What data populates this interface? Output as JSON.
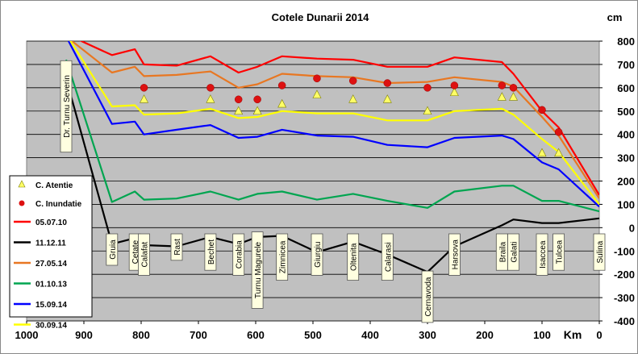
{
  "chart_data": {
    "type": "line",
    "title": "Cotele Dunarii 2014",
    "xlabel": "Km",
    "ylabel": "cm",
    "xlim": [
      1000,
      0
    ],
    "ylim": [
      -400,
      800
    ],
    "x_ticks": [
      1000,
      900,
      800,
      700,
      600,
      500,
      400,
      300,
      200,
      100,
      0
    ],
    "y_ticks": [
      -400,
      -300,
      -200,
      -100,
      0,
      100,
      200,
      300,
      400,
      500,
      600,
      700,
      800
    ],
    "x_reversed": true,
    "grid": "horizontal",
    "plot_background": "#c0c0c0",
    "legend_position": "bottom-left",
    "stations": [
      {
        "name": "Dr. Turnu Severin",
        "km": 931
      },
      {
        "name": "Gruia",
        "km": 851
      },
      {
        "name": "Cetate",
        "km": 811
      },
      {
        "name": "Calafat",
        "km": 795
      },
      {
        "name": "Rast",
        "km": 738
      },
      {
        "name": "Bechet",
        "km": 679
      },
      {
        "name": "Corabia",
        "km": 630
      },
      {
        "name": "Turnu Magurele",
        "km": 597
      },
      {
        "name": "Zimnicea",
        "km": 554
      },
      {
        "name": "Giurgiu",
        "km": 493
      },
      {
        "name": "Oltenita",
        "km": 430
      },
      {
        "name": "Calarasi",
        "km": 370
      },
      {
        "name": "Cernavoda",
        "km": 300
      },
      {
        "name": "Harsova",
        "km": 253
      },
      {
        "name": "Braila",
        "km": 170
      },
      {
        "name": "Galati",
        "km": 150
      },
      {
        "name": "Isaccea",
        "km": 100
      },
      {
        "name": "Tulcea",
        "km": 71
      },
      {
        "name": "Sulina",
        "km": 0
      }
    ],
    "series": [
      {
        "name": "05.07.10",
        "color": "#ff0000",
        "x": [
          931,
          851,
          811,
          795,
          738,
          679,
          630,
          597,
          554,
          493,
          430,
          370,
          300,
          253,
          170,
          150,
          100,
          71,
          0
        ],
        "y": [
          830,
          740,
          765,
          700,
          695,
          735,
          665,
          690,
          735,
          725,
          720,
          690,
          690,
          730,
          710,
          660,
          500,
          430,
          140
        ]
      },
      {
        "name": "11.12.11",
        "color": "#000000",
        "x": [
          931,
          851,
          811,
          795,
          738,
          679,
          630,
          597,
          554,
          493,
          430,
          370,
          300,
          253,
          170,
          150,
          100,
          71,
          0
        ],
        "y": [
          640,
          -70,
          -45,
          -75,
          -80,
          -40,
          -70,
          -40,
          -35,
          -105,
          -60,
          -115,
          -190,
          -80,
          10,
          35,
          20,
          20,
          40
        ]
      },
      {
        "name": "27.05.14",
        "color": "#e87722",
        "x": [
          931,
          851,
          811,
          795,
          738,
          679,
          630,
          597,
          554,
          493,
          430,
          370,
          300,
          253,
          170,
          150,
          100,
          71,
          0
        ],
        "y": [
          820,
          665,
          690,
          650,
          655,
          670,
          600,
          615,
          660,
          650,
          645,
          620,
          625,
          645,
          625,
          605,
          475,
          395,
          125
        ]
      },
      {
        "name": "01.10.13",
        "color": "#00a550",
        "x": [
          931,
          851,
          811,
          795,
          738,
          679,
          630,
          597,
          554,
          493,
          430,
          370,
          300,
          253,
          170,
          150,
          100,
          71,
          0
        ],
        "y": [
          720,
          110,
          155,
          120,
          125,
          155,
          120,
          145,
          155,
          120,
          145,
          115,
          85,
          155,
          180,
          180,
          115,
          115,
          70
        ]
      },
      {
        "name": "15.09.14",
        "color": "#0000ff",
        "x": [
          931,
          851,
          811,
          795,
          738,
          679,
          630,
          597,
          554,
          493,
          430,
          370,
          300,
          253,
          170,
          150,
          100,
          71,
          0
        ],
        "y": [
          820,
          445,
          455,
          400,
          420,
          440,
          385,
          390,
          420,
          395,
          390,
          355,
          345,
          385,
          395,
          380,
          280,
          250,
          90
        ]
      },
      {
        "name": "30.09.14",
        "color": "#ffff00",
        "x": [
          931,
          851,
          811,
          795,
          738,
          679,
          630,
          597,
          554,
          493,
          430,
          370,
          300,
          253,
          170,
          150,
          100,
          71,
          0
        ],
        "y": [
          830,
          520,
          525,
          485,
          490,
          510,
          470,
          475,
          500,
          490,
          490,
          460,
          460,
          500,
          510,
          485,
          380,
          325,
          100
        ]
      }
    ],
    "markers": [
      {
        "name": "C. Atentie",
        "shape": "triangle",
        "color": "#ffff66",
        "x": [
          795,
          679,
          630,
          597,
          554,
          493,
          430,
          370,
          300,
          253,
          170,
          150,
          100,
          71
        ],
        "y": [
          550,
          550,
          500,
          500,
          530,
          570,
          550,
          550,
          500,
          580,
          560,
          560,
          320,
          320
        ]
      },
      {
        "name": "C. Inundatie",
        "shape": "circle",
        "color": "#dd1111",
        "x": [
          795,
          679,
          630,
          597,
          554,
          493,
          430,
          370,
          300,
          253,
          170,
          150,
          100,
          71
        ],
        "y": [
          600,
          600,
          550,
          550,
          610,
          640,
          630,
          620,
          600,
          610,
          610,
          600,
          505,
          410
        ]
      }
    ]
  }
}
